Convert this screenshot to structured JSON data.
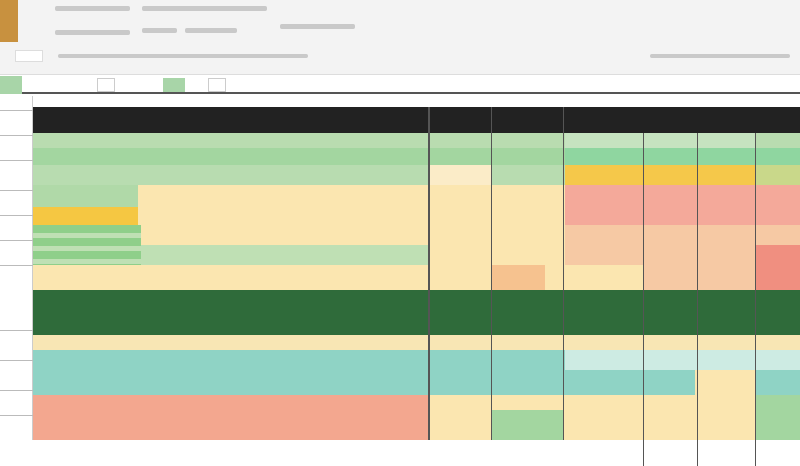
{
  "toolbar": {
    "background": "#f3f3f3",
    "accent_tab_color": "#c8913f"
  },
  "sheet": {
    "header_bar_color": "#222222",
    "colors": {
      "light_green": "#b9dcb0",
      "green": "#a3d6a0",
      "bright_green": "#8fd6a0",
      "dark_green": "#2f6b3a",
      "yellow": "#f5c742",
      "cream": "#fbe6b0",
      "salmon": "#f4a99a",
      "peach": "#f6c28f",
      "teal": "#8fd3c5",
      "coral": "#f3a78f"
    }
  }
}
